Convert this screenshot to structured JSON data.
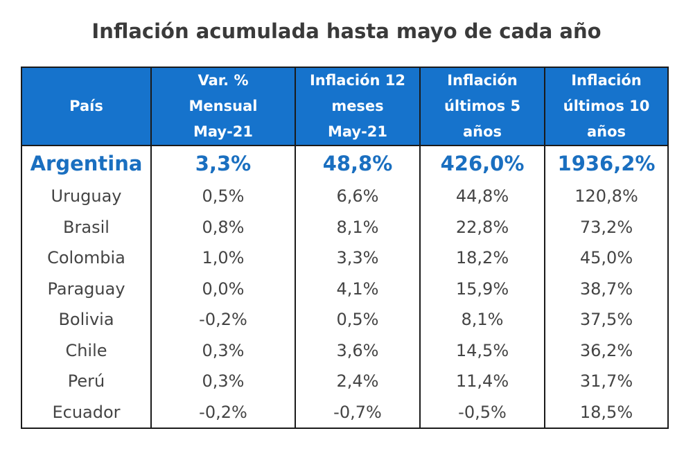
{
  "chart_data": {
    "type": "table",
    "title": "Inflación acumulada hasta mayo de cada año",
    "columns": [
      "País",
      "Var. %\nMensual\nMay-21",
      "Inflación 12\nmeses\nMay-21",
      "Inflación\núltimos 5\naños",
      "Inflación\núltimos 10\naños"
    ],
    "rows": [
      [
        "Argentina",
        "3,3%",
        "48,8%",
        "426,0%",
        "1936,2%"
      ],
      [
        "Uruguay",
        "0,5%",
        "6,6%",
        "44,8%",
        "120,8%"
      ],
      [
        "Brasil",
        "0,8%",
        "8,1%",
        "22,8%",
        "73,2%"
      ],
      [
        "Colombia",
        "1,0%",
        "3,3%",
        "18,2%",
        "45,0%"
      ],
      [
        "Paraguay",
        "0,0%",
        "4,1%",
        "15,9%",
        "38,7%"
      ],
      [
        "Bolivia",
        "-0,2%",
        "0,5%",
        "8,1%",
        "37,5%"
      ],
      [
        "Chile",
        "0,3%",
        "3,6%",
        "14,5%",
        "36,2%"
      ],
      [
        "Perú",
        "0,3%",
        "2,4%",
        "11,4%",
        "31,7%"
      ],
      [
        "Ecuador",
        "-0,2%",
        "-0,7%",
        "-0,5%",
        "18,5%"
      ]
    ],
    "highlighted_row": "Argentina",
    "colors": {
      "header_bg": "#1673cc",
      "header_text": "#ffffff",
      "highlight_text": "#1a6fc0",
      "body_text": "#444444"
    }
  }
}
